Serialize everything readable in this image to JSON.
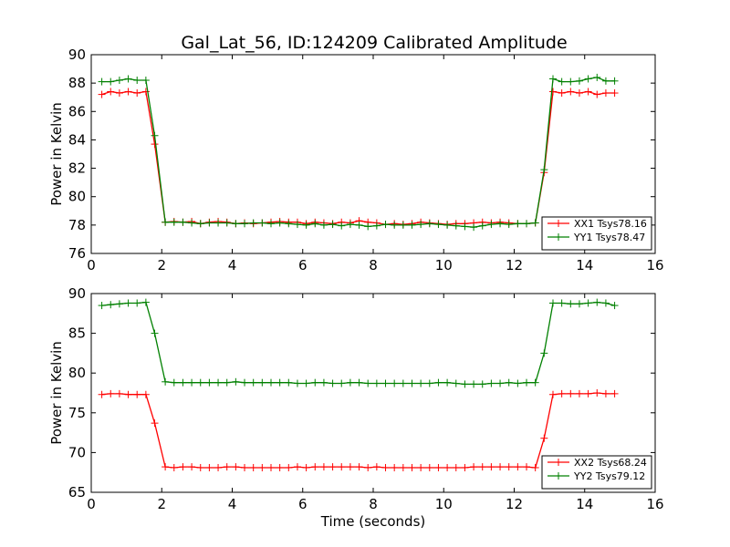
{
  "title": "Gal_Lat_56, ID:124209 Calibrated Amplitude",
  "chart_data": [
    {
      "type": "line",
      "xlabel": "",
      "ylabel": "Power in Kelvin",
      "xlim": [
        0,
        16
      ],
      "ylim": [
        76,
        90
      ],
      "xticks": [
        "0",
        "2",
        "4",
        "6",
        "8",
        "10",
        "12",
        "14",
        "16"
      ],
      "yticks": [
        "76",
        "78",
        "80",
        "82",
        "84",
        "86",
        "88",
        "90"
      ],
      "legend_position": "lower-right",
      "x": [
        0.3,
        0.55,
        0.8,
        1.05,
        1.3,
        1.55,
        1.8,
        2.1,
        2.35,
        2.6,
        2.85,
        3.1,
        3.35,
        3.6,
        3.85,
        4.1,
        4.35,
        4.6,
        4.85,
        5.1,
        5.35,
        5.6,
        5.85,
        6.1,
        6.35,
        6.6,
        6.85,
        7.1,
        7.35,
        7.6,
        7.85,
        8.1,
        8.35,
        8.6,
        8.85,
        9.1,
        9.35,
        9.6,
        9.85,
        10.1,
        10.35,
        10.6,
        10.85,
        11.1,
        11.35,
        11.6,
        11.85,
        12.1,
        12.35,
        12.6,
        12.85,
        13.1,
        13.35,
        13.6,
        13.85,
        14.1,
        14.35,
        14.6,
        14.85
      ],
      "series": [
        {
          "name": "XX1 Tsys78.16",
          "color": "#ff0000",
          "values": [
            87.2,
            87.4,
            87.3,
            87.4,
            87.3,
            87.4,
            83.7,
            78.2,
            78.25,
            78.2,
            78.25,
            78.1,
            78.2,
            78.25,
            78.2,
            78.1,
            78.15,
            78.1,
            78.15,
            78.2,
            78.25,
            78.2,
            78.2,
            78.1,
            78.2,
            78.15,
            78.1,
            78.2,
            78.15,
            78.3,
            78.2,
            78.15,
            78.05,
            78.1,
            78.05,
            78.1,
            78.2,
            78.15,
            78.1,
            78.05,
            78.1,
            78.1,
            78.15,
            78.2,
            78.15,
            78.2,
            78.15,
            78.1,
            78.1,
            78.15,
            81.7,
            87.4,
            87.3,
            87.4,
            87.3,
            87.4,
            87.2,
            87.3,
            87.3
          ]
        },
        {
          "name": "YY1 Tsys78.47",
          "color": "#008000",
          "values": [
            88.1,
            88.1,
            88.2,
            88.3,
            88.2,
            88.2,
            84.3,
            78.2,
            78.2,
            78.2,
            78.15,
            78.1,
            78.15,
            78.15,
            78.15,
            78.1,
            78.1,
            78.15,
            78.15,
            78.1,
            78.15,
            78.1,
            78.05,
            78.0,
            78.1,
            78.0,
            78.05,
            77.95,
            78.05,
            78.0,
            77.9,
            77.95,
            78.05,
            78.0,
            78.0,
            78.0,
            78.05,
            78.1,
            78.05,
            78.0,
            77.95,
            77.9,
            77.85,
            77.95,
            78.05,
            78.1,
            78.05,
            78.1,
            78.1,
            78.15,
            81.9,
            88.3,
            88.1,
            88.1,
            88.15,
            88.3,
            88.4,
            88.15,
            88.15
          ]
        }
      ]
    },
    {
      "type": "line",
      "xlabel": "Time (seconds)",
      "ylabel": "Power in Kelvin",
      "xlim": [
        0,
        16
      ],
      "ylim": [
        65,
        90
      ],
      "xticks": [
        "0",
        "2",
        "4",
        "6",
        "8",
        "10",
        "12",
        "14",
        "16"
      ],
      "yticks": [
        "65",
        "70",
        "75",
        "80",
        "85",
        "90"
      ],
      "legend_position": "lower-right",
      "x": [
        0.3,
        0.55,
        0.8,
        1.05,
        1.3,
        1.55,
        1.8,
        2.1,
        2.35,
        2.6,
        2.85,
        3.1,
        3.35,
        3.6,
        3.85,
        4.1,
        4.35,
        4.6,
        4.85,
        5.1,
        5.35,
        5.6,
        5.85,
        6.1,
        6.35,
        6.6,
        6.85,
        7.1,
        7.35,
        7.6,
        7.85,
        8.1,
        8.35,
        8.6,
        8.85,
        9.1,
        9.35,
        9.6,
        9.85,
        10.1,
        10.35,
        10.6,
        10.85,
        11.1,
        11.35,
        11.6,
        11.85,
        12.1,
        12.35,
        12.6,
        12.85,
        13.1,
        13.35,
        13.6,
        13.85,
        14.1,
        14.35,
        14.6,
        14.85
      ],
      "series": [
        {
          "name": "XX2 Tsys68.24",
          "color": "#ff0000",
          "values": [
            77.3,
            77.4,
            77.4,
            77.3,
            77.3,
            77.3,
            73.7,
            68.2,
            68.1,
            68.2,
            68.2,
            68.1,
            68.1,
            68.1,
            68.2,
            68.2,
            68.1,
            68.1,
            68.1,
            68.1,
            68.1,
            68.1,
            68.2,
            68.1,
            68.2,
            68.2,
            68.2,
            68.2,
            68.2,
            68.2,
            68.1,
            68.2,
            68.1,
            68.1,
            68.1,
            68.1,
            68.1,
            68.1,
            68.1,
            68.1,
            68.1,
            68.1,
            68.2,
            68.2,
            68.2,
            68.2,
            68.2,
            68.2,
            68.2,
            68.1,
            71.8,
            77.3,
            77.4,
            77.4,
            77.4,
            77.4,
            77.5,
            77.4,
            77.4
          ]
        },
        {
          "name": "YY2 Tsys79.12",
          "color": "#008000",
          "values": [
            88.5,
            88.6,
            88.7,
            88.8,
            88.8,
            88.9,
            85.0,
            78.9,
            78.8,
            78.8,
            78.8,
            78.8,
            78.8,
            78.8,
            78.8,
            78.9,
            78.8,
            78.8,
            78.8,
            78.8,
            78.8,
            78.8,
            78.7,
            78.7,
            78.8,
            78.8,
            78.7,
            78.7,
            78.8,
            78.8,
            78.7,
            78.7,
            78.7,
            78.7,
            78.7,
            78.7,
            78.7,
            78.7,
            78.8,
            78.8,
            78.7,
            78.6,
            78.6,
            78.6,
            78.7,
            78.7,
            78.8,
            78.7,
            78.8,
            78.8,
            82.5,
            88.8,
            88.8,
            88.7,
            88.7,
            88.8,
            88.9,
            88.8,
            88.5
          ]
        }
      ]
    }
  ]
}
